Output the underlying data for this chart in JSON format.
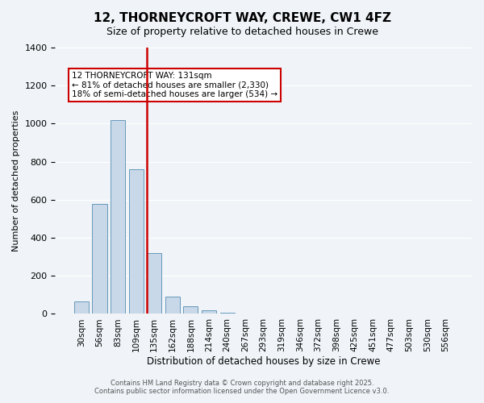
{
  "title_line1": "12, THORNEYCROFT WAY, CREWE, CW1 4FZ",
  "title_line2": "Size of property relative to detached houses in Crewe",
  "xlabel": "Distribution of detached houses by size in Crewe",
  "ylabel": "Number of detached properties",
  "bar_color": "#c8d8e8",
  "bar_edge_color": "#6699bb",
  "categories": [
    "30sqm",
    "56sqm",
    "83sqm",
    "109sqm",
    "135sqm",
    "162sqm",
    "188sqm",
    "214sqm",
    "240sqm",
    "267sqm",
    "293sqm",
    "319sqm",
    "346sqm",
    "372sqm",
    "398sqm",
    "425sqm",
    "451sqm",
    "477sqm",
    "503sqm",
    "530sqm",
    "556sqm"
  ],
  "values": [
    65,
    580,
    1020,
    760,
    320,
    90,
    40,
    20,
    8,
    3,
    0,
    0,
    0,
    0,
    0,
    0,
    0,
    0,
    0,
    0,
    0
  ],
  "ylim": [
    0,
    1400
  ],
  "yticks": [
    0,
    200,
    400,
    600,
    800,
    1000,
    1200,
    1400
  ],
  "vline_x": 4,
  "vline_color": "#cc0000",
  "annotation_title": "12 THORNEYCROFT WAY: 131sqm",
  "annotation_line1": "← 81% of detached houses are smaller (2,330)",
  "annotation_line2": "18% of semi-detached houses are larger (534) →",
  "annotation_box_color": "#ffffff",
  "annotation_box_edge": "#cc0000",
  "footer_line1": "Contains HM Land Registry data © Crown copyright and database right 2025.",
  "footer_line2": "Contains public sector information licensed under the Open Government Licence v3.0.",
  "background_color": "#f0f4f8",
  "grid_color": "#ffffff"
}
